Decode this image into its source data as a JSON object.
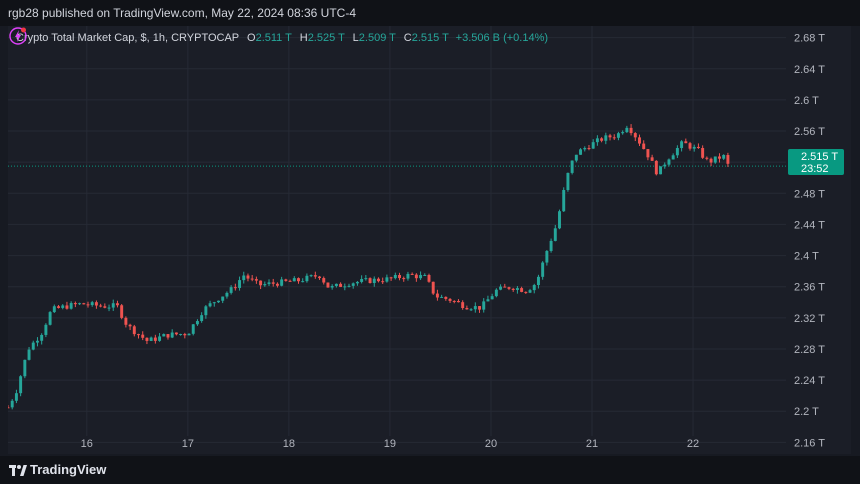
{
  "header": {
    "text": "rgb28 published on TradingView.com, May 22, 2024 08:36 UTC-4"
  },
  "legend": {
    "symbol": "Crypto Total Market Cap, $, 1h, CRYPTOCAP",
    "o_label": "O",
    "o_value": "2.511 T",
    "h_label": "H",
    "h_value": "2.525 T",
    "l_label": "L",
    "l_value": "2.509 T",
    "c_label": "C",
    "c_value": "2.515 T",
    "change": "+3.506 B (+0.14%)"
  },
  "price_tag": {
    "price": "2.515 T",
    "countdown": "23:52"
  },
  "footer": {
    "brand": "TradingView"
  },
  "colors": {
    "up": "#26a69a",
    "down": "#ef5350",
    "background": "#1b1e27",
    "grid": "#262a35",
    "last_price": "#089981"
  },
  "chart_data": {
    "type": "candlestick",
    "x_ticks": [
      "16",
      "17",
      "18",
      "19",
      "20",
      "21",
      "22"
    ],
    "x_tick_times": [
      16,
      17,
      18,
      19,
      20,
      21,
      22
    ],
    "y_ticks": [
      "2.16 T",
      "2.2 T",
      "2.24 T",
      "2.28 T",
      "2.32 T",
      "2.36 T",
      "2.4 T",
      "2.44 T",
      "2.48 T",
      "2.52 T",
      "2.56 T",
      "2.6 T",
      "2.64 T",
      "2.68 T"
    ],
    "y_tick_values": [
      2.16,
      2.2,
      2.24,
      2.28,
      2.32,
      2.36,
      2.4,
      2.44,
      2.48,
      2.52,
      2.56,
      2.6,
      2.64,
      2.68
    ],
    "ylim": [
      2.145,
      2.695
    ],
    "xlim": [
      15.22,
      22.92
    ],
    "last_price": 2.515,
    "close_path": [
      [
        15.22,
        2.205
      ],
      [
        15.3,
        2.225
      ],
      [
        15.42,
        2.28
      ],
      [
        15.55,
        2.3
      ],
      [
        15.65,
        2.33
      ],
      [
        15.8,
        2.335
      ],
      [
        15.95,
        2.338
      ],
      [
        16.15,
        2.335
      ],
      [
        16.3,
        2.335
      ],
      [
        16.4,
        2.31
      ],
      [
        16.5,
        2.3
      ],
      [
        16.6,
        2.29
      ],
      [
        16.8,
        2.298
      ],
      [
        17.0,
        2.3
      ],
      [
        17.15,
        2.33
      ],
      [
        17.3,
        2.345
      ],
      [
        17.45,
        2.358
      ],
      [
        17.55,
        2.375
      ],
      [
        17.7,
        2.362
      ],
      [
        17.9,
        2.365
      ],
      [
        18.1,
        2.368
      ],
      [
        18.3,
        2.375
      ],
      [
        18.4,
        2.358
      ],
      [
        18.6,
        2.365
      ],
      [
        18.8,
        2.368
      ],
      [
        19.0,
        2.37
      ],
      [
        19.2,
        2.375
      ],
      [
        19.35,
        2.372
      ],
      [
        19.45,
        2.348
      ],
      [
        19.6,
        2.343
      ],
      [
        19.75,
        2.335
      ],
      [
        19.9,
        2.333
      ],
      [
        20.05,
        2.355
      ],
      [
        20.2,
        2.36
      ],
      [
        20.35,
        2.355
      ],
      [
        20.45,
        2.365
      ],
      [
        20.55,
        2.405
      ],
      [
        20.65,
        2.44
      ],
      [
        20.75,
        2.5
      ],
      [
        20.83,
        2.53
      ],
      [
        20.95,
        2.54
      ],
      [
        21.1,
        2.55
      ],
      [
        21.25,
        2.555
      ],
      [
        21.35,
        2.568
      ],
      [
        21.45,
        2.55
      ],
      [
        21.55,
        2.53
      ],
      [
        21.65,
        2.505
      ],
      [
        21.75,
        2.525
      ],
      [
        21.9,
        2.545
      ],
      [
        22.05,
        2.535
      ],
      [
        22.15,
        2.52
      ],
      [
        22.3,
        2.528
      ],
      [
        22.35,
        2.515
      ]
    ]
  }
}
